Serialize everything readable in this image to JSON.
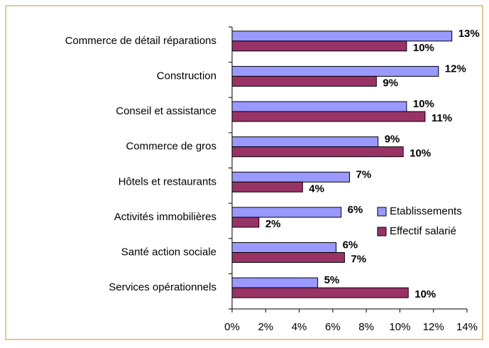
{
  "chart_data": {
    "type": "bar",
    "orientation": "horizontal",
    "categories": [
      "Commerce de détail réparations",
      "Construction",
      "Conseil et assistance",
      "Commerce de gros",
      "Hôtels et restaurants",
      "Activités immobilières",
      "Santé action sociale",
      "Services opérationnels"
    ],
    "series": [
      {
        "name": "Etablissements",
        "color": "#9999ff",
        "values": [
          13.1,
          12.3,
          10.4,
          8.7,
          7.0,
          6.5,
          6.2,
          5.1
        ],
        "value_labels": [
          "13%",
          "12%",
          "10%",
          "9%",
          "7%",
          "6%",
          "6%",
          "5%"
        ]
      },
      {
        "name": "Effectif salarié",
        "color": "#993366",
        "values": [
          10.4,
          8.6,
          11.5,
          10.2,
          4.2,
          1.6,
          6.7,
          10.5
        ],
        "value_labels": [
          "10%",
          "9%",
          "11%",
          "10%",
          "4%",
          "2%",
          "7%",
          "10%"
        ]
      }
    ],
    "xlim": [
      0,
      14
    ],
    "xticks": [
      {
        "value": 0,
        "label": "0%"
      },
      {
        "value": 2,
        "label": "2%"
      },
      {
        "value": 4,
        "label": "4%"
      },
      {
        "value": 6,
        "label": "6%"
      },
      {
        "value": 8,
        "label": "8%"
      },
      {
        "value": 10,
        "label": "10%"
      },
      {
        "value": 12,
        "label": "12%"
      },
      {
        "value": 14,
        "label": "14%"
      }
    ],
    "grid": false,
    "legend": "right"
  }
}
